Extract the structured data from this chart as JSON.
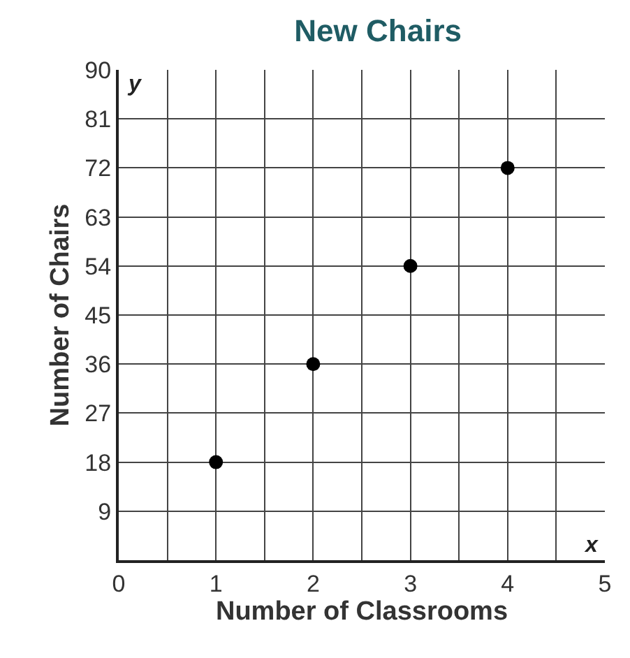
{
  "chart_data": {
    "type": "scatter",
    "title": "New Chairs",
    "xlabel": "Number of Classrooms",
    "ylabel": "Number of Chairs",
    "x": [
      1,
      2,
      3,
      4
    ],
    "series": [
      {
        "color": "#000000",
        "values": [
          18,
          36,
          54,
          72
        ]
      }
    ],
    "xlim": [
      0,
      5
    ],
    "ylim": [
      0,
      90
    ],
    "xticks": [
      0,
      {
        "value": 0.5,
        "label": null
      },
      1,
      {
        "value": 1.5,
        "label": null
      },
      2,
      {
        "value": 2.5,
        "label": null
      },
      3,
      {
        "value": 3.5,
        "label": null
      },
      4,
      {
        "value": 4.5,
        "label": null
      },
      5
    ],
    "yticks": [
      9,
      18,
      27,
      36,
      45,
      54,
      63,
      72,
      81,
      90
    ],
    "grid": true,
    "marker": "circle",
    "annotations": [
      "x",
      "y"
    ]
  }
}
